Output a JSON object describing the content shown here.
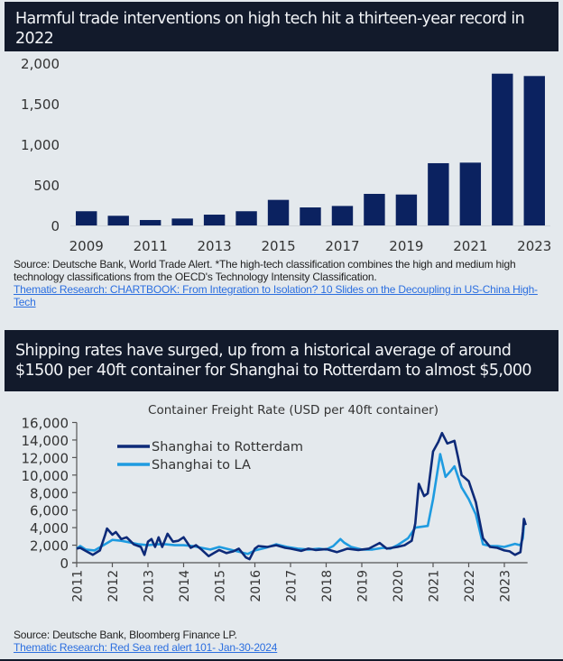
{
  "panel1": {
    "header": "Harmful trade interventions on high tech hit a thirteen-year record in 2022",
    "source": "Source: Deutsche Bank, World Trade Alert. *The high-tech classification combines the high and medium high technology classifications from the OECD's Technology Intensity Classification.",
    "link": "Thematic Research: CHARTBOOK: From Integration to Isolation? 10 Slides on the Decoupling in US-China High-Tech"
  },
  "panel2": {
    "header": "Shipping rates have surged, up from a historical average of around $1500 per 40ft container for Shanghai to Rotterdam to almost $5,000",
    "source": "Source: Deutsche Bank, Bloomberg Finance LP.",
    "link": "Thematic Research: Red Sea red alert 101- Jan-30-2024"
  },
  "colors": {
    "bar": "#0b2260",
    "rotterdam": "#0d2a78",
    "la": "#1e9be0",
    "axis": "#555555",
    "header_bg": "#121a2b"
  },
  "chart_data": [
    {
      "type": "bar",
      "title": "",
      "xlabel": "",
      "ylabel": "",
      "categories": [
        "2009",
        "2010",
        "2011",
        "2012",
        "2013",
        "2014",
        "2015",
        "2016",
        "2017",
        "2018",
        "2019",
        "2020",
        "2021",
        "2022",
        "2023"
      ],
      "x_tick_labels": [
        "2009",
        "2011",
        "2013",
        "2015",
        "2017",
        "2019",
        "2021",
        "2023"
      ],
      "values": [
        175,
        119,
        67,
        85,
        133,
        175,
        315,
        222,
        240,
        389,
        381,
        767,
        774,
        1870,
        1841
      ],
      "ylim": [
        0,
        2000
      ],
      "y_ticks": [
        0,
        500,
        1000,
        1500,
        2000
      ],
      "y_tick_labels": [
        "0",
        "500",
        "1,000",
        "1,500",
        "2,000"
      ],
      "grid": false
    },
    {
      "type": "line",
      "title": "Container Freight Rate (USD per 40ft container)",
      "xlabel": "",
      "ylabel": "",
      "xlim": [
        2011,
        2023.65
      ],
      "ylim": [
        0,
        16000
      ],
      "y_ticks": [
        0,
        2000,
        4000,
        6000,
        8000,
        10000,
        12000,
        14000,
        16000
      ],
      "y_tick_labels": [
        "0",
        "2,000",
        "4,000",
        "6,000",
        "8,000",
        "10,000",
        "12,000",
        "14,000",
        "16,000"
      ],
      "x_ticks": [
        2011,
        2012,
        2013,
        2014,
        2015,
        2016,
        2017,
        2018,
        2019,
        2020,
        2021,
        2022,
        2023
      ],
      "x_tick_labels": [
        "2011",
        "2012",
        "2013",
        "2014",
        "2015",
        "2016",
        "2017",
        "2018",
        "2019",
        "2020",
        "2021",
        "2022",
        "2023"
      ],
      "legend": "top-left",
      "grid": false,
      "series": [
        {
          "name": "Shanghai to Rotterdam",
          "x": [
            2011.0,
            2011.1,
            2011.25,
            2011.45,
            2011.65,
            2011.8,
            2011.85,
            2012.0,
            2012.1,
            2012.25,
            2012.4,
            2012.6,
            2012.8,
            2012.9,
            2013.0,
            2013.1,
            2013.2,
            2013.3,
            2013.4,
            2013.55,
            2013.7,
            2013.85,
            2014.0,
            2014.2,
            2014.35,
            2014.5,
            2014.7,
            2014.85,
            2015.0,
            2015.2,
            2015.4,
            2015.55,
            2015.75,
            2015.85,
            2016.0,
            2016.1,
            2016.35,
            2016.6,
            2016.85,
            2017.0,
            2017.3,
            2017.5,
            2017.7,
            2018.0,
            2018.3,
            2018.6,
            2018.9,
            2019.2,
            2019.5,
            2019.7,
            2020.0,
            2020.2,
            2020.4,
            2020.5,
            2020.6,
            2020.75,
            2020.85,
            2021.0,
            2021.15,
            2021.25,
            2021.4,
            2021.6,
            2021.7,
            2021.8,
            2022.0,
            2022.2,
            2022.4,
            2022.6,
            2022.8,
            2023.0,
            2023.15,
            2023.3,
            2023.45,
            2023.52,
            2023.55,
            2023.6
          ],
          "y": [
            1600,
            1700,
            1350,
            900,
            1400,
            3200,
            3900,
            3200,
            3500,
            2700,
            2900,
            2100,
            1800,
            900,
            2400,
            2700,
            1800,
            2900,
            1800,
            3300,
            2400,
            2500,
            2900,
            1700,
            2000,
            1500,
            750,
            1100,
            1450,
            1100,
            1300,
            1600,
            600,
            400,
            1600,
            1900,
            1800,
            2000,
            1700,
            1600,
            1350,
            1600,
            1450,
            1550,
            1200,
            1600,
            1450,
            1600,
            2250,
            1600,
            1800,
            2000,
            2500,
            4500,
            9000,
            7600,
            7900,
            12700,
            13800,
            14800,
            13600,
            13900,
            12000,
            10000,
            9300,
            6900,
            2800,
            1800,
            1700,
            1400,
            1300,
            900,
            1200,
            3500,
            5000,
            4300
          ]
        },
        {
          "name": "Shanghai to LA",
          "x": [
            2011.0,
            2011.1,
            2011.25,
            2011.5,
            2011.75,
            2012.0,
            2012.25,
            2012.5,
            2012.75,
            2013.0,
            2013.25,
            2013.5,
            2013.75,
            2014.0,
            2014.25,
            2014.5,
            2014.75,
            2015.0,
            2015.4,
            2015.8,
            2016.0,
            2016.3,
            2016.6,
            2016.9,
            2017.2,
            2017.5,
            2017.8,
            2018.0,
            2018.2,
            2018.4,
            2018.5,
            2018.7,
            2019.0,
            2019.3,
            2019.6,
            2019.8,
            2020.0,
            2020.3,
            2020.5,
            2020.85,
            2021.0,
            2021.2,
            2021.35,
            2021.5,
            2021.6,
            2021.8,
            2022.0,
            2022.2,
            2022.4,
            2022.6,
            2022.8,
            2023.0,
            2023.3,
            2023.45,
            2023.52,
            2023.55,
            2023.6
          ],
          "y": [
            1600,
            1900,
            1500,
            1400,
            2000,
            2600,
            2500,
            2300,
            2100,
            2000,
            2100,
            2100,
            2000,
            2000,
            1900,
            1700,
            1500,
            1800,
            1400,
            1000,
            1400,
            1700,
            2100,
            1800,
            1600,
            1500,
            1600,
            1500,
            1900,
            2700,
            2300,
            1800,
            1500,
            1500,
            1700,
            1600,
            2000,
            2800,
            4000,
            4200,
            7250,
            12400,
            9800,
            10500,
            11000,
            8600,
            7250,
            5500,
            2100,
            1900,
            1900,
            1800,
            2150,
            2000,
            2800,
            4400,
            4500
          ]
        }
      ]
    }
  ]
}
